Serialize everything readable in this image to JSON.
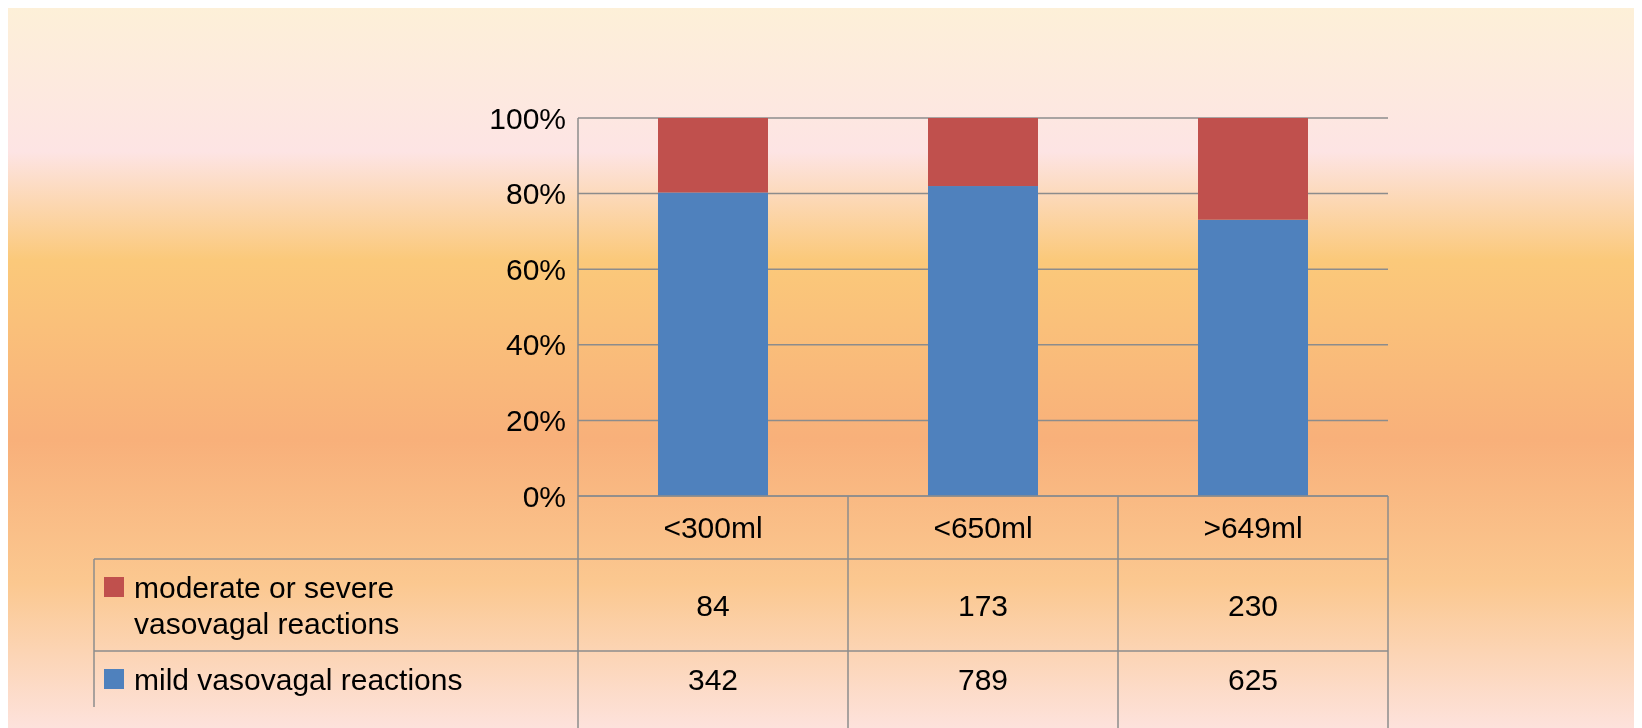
{
  "chart_data": {
    "type": "bar",
    "stacked": true,
    "categories": [
      "<300ml",
      "<650ml",
      ">649ml"
    ],
    "series": [
      {
        "name": "mild vasovagal reactions",
        "color": "#4f81bd",
        "values": [
          80.3,
          82.0,
          73.1
        ]
      },
      {
        "name": "moderate or severe vasovagal reactions",
        "color": "#c0504d",
        "values": [
          19.7,
          18.0,
          26.9
        ]
      }
    ],
    "annotations": [
      "84",
      "173",
      "230",
      "342",
      "789",
      "625"
    ],
    "ylim": [
      0,
      100
    ],
    "yticks": [
      {
        "value": 0,
        "label": "0%"
      },
      {
        "value": 20,
        "label": "20%"
      },
      {
        "value": 40,
        "label": "40%"
      },
      {
        "value": 60,
        "label": "60%"
      },
      {
        "value": 80,
        "label": "80%"
      },
      {
        "value": 100,
        "label": "100%"
      }
    ],
    "grid": "y",
    "legend": "bottom left"
  }
}
